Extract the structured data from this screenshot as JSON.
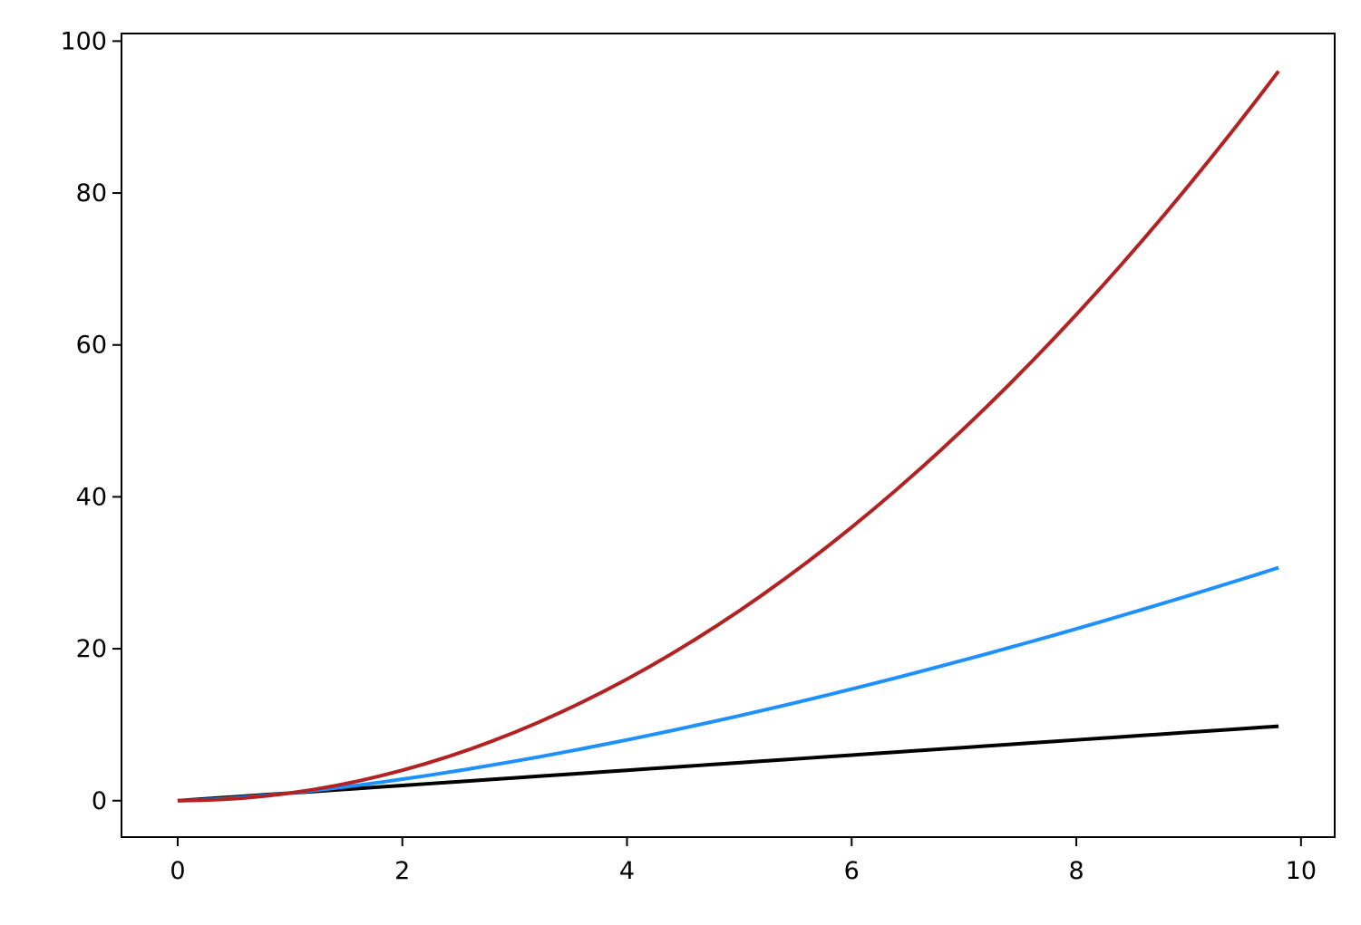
{
  "chart_data": {
    "type": "line",
    "title": "",
    "xlabel": "",
    "ylabel": "",
    "xlim": [
      -0.5,
      10.3
    ],
    "ylim": [
      -4.8,
      101
    ],
    "grid": false,
    "legend": "none",
    "x_ticks": [
      0,
      2,
      4,
      6,
      8,
      10
    ],
    "y_ticks": [
      0,
      20,
      40,
      60,
      80,
      100
    ],
    "x_tick_labels": [
      "0",
      "2",
      "4",
      "6",
      "8",
      "10"
    ],
    "y_tick_labels": [
      "0",
      "20",
      "40",
      "60",
      "80",
      "100"
    ],
    "x": [
      0,
      0.2,
      0.4,
      0.6,
      0.8,
      1.0,
      1.2,
      1.4,
      1.6,
      1.8,
      2.0,
      2.2,
      2.4,
      2.6,
      2.8,
      3.0,
      3.2,
      3.4,
      3.6,
      3.8,
      4.0,
      4.2,
      4.4,
      4.6,
      4.8,
      5.0,
      5.2,
      5.4,
      5.6,
      5.8,
      6.0,
      6.2,
      6.4,
      6.6,
      6.8,
      7.0,
      7.2,
      7.4,
      7.6,
      7.8,
      8.0,
      8.2,
      8.4,
      8.6,
      8.8,
      9.0,
      9.2,
      9.4,
      9.6,
      9.8
    ],
    "series": [
      {
        "color": "#000000",
        "values": [
          0,
          0.2,
          0.4,
          0.6,
          0.8,
          1.0,
          1.2,
          1.4,
          1.6,
          1.8,
          2.0,
          2.2,
          2.4,
          2.6,
          2.8,
          3.0,
          3.2,
          3.4,
          3.6,
          3.8,
          4.0,
          4.2,
          4.4,
          4.6,
          4.8,
          5.0,
          5.2,
          5.4,
          5.6,
          5.8,
          6.0,
          6.2,
          6.4,
          6.6,
          6.8,
          7.0,
          7.2,
          7.4,
          7.6,
          7.8,
          8.0,
          8.2,
          8.4,
          8.6,
          8.8,
          9.0,
          9.2,
          9.4,
          9.6,
          9.8
        ]
      },
      {
        "color": "#1e90ff",
        "values": [
          0,
          0.09,
          0.25,
          0.46,
          0.72,
          1.0,
          1.31,
          1.66,
          2.02,
          2.41,
          2.83,
          3.26,
          3.72,
          4.19,
          4.69,
          5.2,
          5.72,
          6.27,
          6.83,
          7.41,
          8.0,
          8.61,
          9.23,
          9.87,
          10.52,
          11.18,
          11.86,
          12.55,
          13.25,
          13.97,
          14.7,
          15.44,
          16.19,
          16.96,
          17.73,
          18.52,
          19.32,
          20.13,
          20.95,
          21.78,
          22.63,
          23.48,
          24.35,
          25.22,
          26.11,
          27.0,
          27.91,
          28.82,
          29.74,
          30.68
        ]
      },
      {
        "color": "#b22222",
        "values": [
          0,
          0.04,
          0.16,
          0.36,
          0.64,
          1.0,
          1.44,
          1.96,
          2.56,
          3.24,
          4.0,
          4.84,
          5.76,
          6.76,
          7.84,
          9.0,
          10.24,
          11.56,
          12.96,
          14.44,
          16.0,
          17.64,
          19.36,
          21.16,
          23.04,
          25.0,
          27.04,
          29.16,
          31.36,
          33.64,
          36.0,
          38.44,
          40.96,
          43.56,
          46.24,
          49.0,
          51.84,
          54.76,
          57.76,
          60.84,
          64.0,
          67.24,
          70.56,
          73.96,
          77.44,
          81.0,
          84.64,
          88.36,
          92.16,
          96.04
        ]
      }
    ]
  }
}
